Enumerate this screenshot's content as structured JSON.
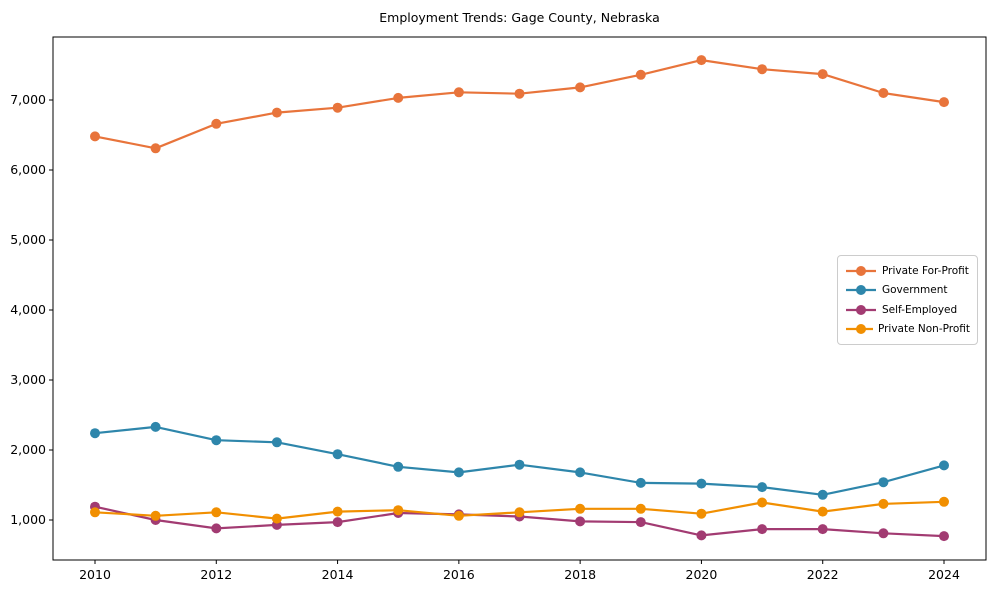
{
  "title": "Employment Trends: Gage County, Nebraska",
  "chart_data": {
    "type": "line",
    "title": "Employment Trends: Gage County, Nebraska",
    "xlabel": "",
    "ylabel": "",
    "grid": false,
    "legend_position": "center-right",
    "x": [
      2010,
      2011,
      2012,
      2013,
      2014,
      2015,
      2016,
      2017,
      2018,
      2019,
      2020,
      2021,
      2022,
      2023,
      2024
    ],
    "x_ticks": [
      2010,
      2012,
      2014,
      2016,
      2018,
      2020,
      2022,
      2024
    ],
    "x_tick_labels": [
      "2010",
      "2012",
      "2014",
      "2016",
      "2018",
      "2020",
      "2022",
      "2024"
    ],
    "y_ticks": [
      1000,
      2000,
      3000,
      4000,
      5000,
      6000,
      7000
    ],
    "y_tick_labels": [
      "1,000",
      "2,000",
      "3,000",
      "4,000",
      "5,000",
      "6,000",
      "7,000"
    ],
    "ylim": [
      430,
      7900
    ],
    "xlim": [
      2009.3,
      2024.7
    ],
    "series": [
      {
        "name": "Private For-Profit",
        "color": "#E8743B",
        "values": [
          6480,
          6310,
          6660,
          6820,
          6890,
          7030,
          7110,
          7090,
          7180,
          7360,
          7570,
          7440,
          7370,
          7100,
          6970
        ]
      },
      {
        "name": "Government",
        "color": "#2E86AB",
        "values": [
          2240,
          2330,
          2140,
          2110,
          1940,
          1760,
          1680,
          1790,
          1680,
          1530,
          1520,
          1470,
          1360,
          1540,
          1780
        ]
      },
      {
        "name": "Self-Employed",
        "color": "#A23B72",
        "values": [
          1190,
          1000,
          880,
          930,
          970,
          1100,
          1080,
          1050,
          980,
          970,
          780,
          870,
          870,
          810,
          770
        ]
      },
      {
        "name": "Private Non-Profit",
        "color": "#F18F01",
        "values": [
          1110,
          1060,
          1110,
          1020,
          1120,
          1140,
          1060,
          1110,
          1160,
          1160,
          1090,
          1250,
          1120,
          1230,
          1260
        ]
      }
    ]
  },
  "colors": {
    "axis": "#000000",
    "background": "#ffffff",
    "legend_border": "#cccccc"
  }
}
